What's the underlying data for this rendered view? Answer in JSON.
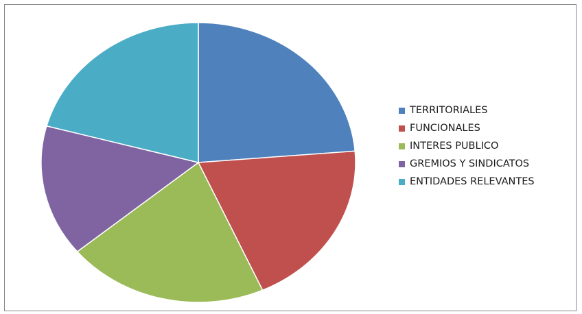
{
  "chart_data": {
    "type": "pie",
    "title": "",
    "legend_position": "right",
    "categories": [
      "TERRITORIALES",
      "FUNCIONALES",
      "INTERES PUBLICO",
      "GREMIOS Y SINDICATOS",
      "ENTIDADES RELEVANTES"
    ],
    "values": [
      23.7,
      19.6,
      20.7,
      15.2,
      20.8
    ],
    "colors": [
      "#4F81BD",
      "#C0504D",
      "#9BBB59",
      "#8064A2",
      "#4BACC6"
    ]
  }
}
